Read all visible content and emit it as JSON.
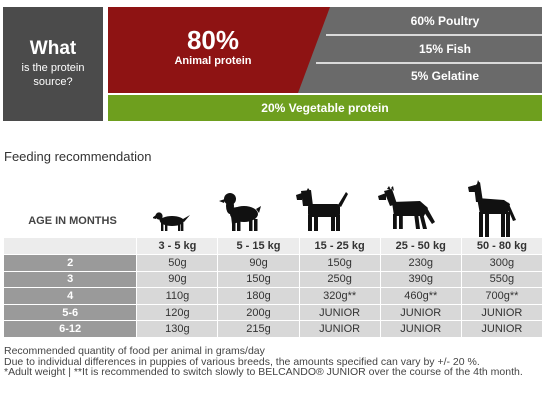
{
  "protein_source": {
    "what_title": "What",
    "what_subtitle": "is the protein source?",
    "animal_percent": "80%",
    "animal_label": "Animal protein",
    "animal_items": [
      "60% Poultry",
      "15% Fish",
      "5% Gelatine"
    ],
    "vegetable_label": "20% Vegetable protein",
    "colors": {
      "dark": "#4b4b4b",
      "red": "#8e1313",
      "grey": "#6a6a6a",
      "green": "#6e9f1e"
    }
  },
  "feeding": {
    "title": "Feeding recommendation",
    "age_header": "AGE IN MONTHS",
    "dog_icons": [
      "dachshund-icon",
      "spaniel-icon",
      "terrier-icon",
      "shepherd-icon",
      "great-dane-icon"
    ],
    "weight_headers": [
      "3 - 5 kg",
      "5 - 15 kg",
      "15 - 25 kg",
      "25 - 50 kg",
      "50 - 80 kg"
    ],
    "rows": [
      {
        "age": "2",
        "values": [
          "50g",
          "90g",
          "150g",
          "230g",
          "300g"
        ]
      },
      {
        "age": "3",
        "values": [
          "90g",
          "150g",
          "250g",
          "390g",
          "550g"
        ]
      },
      {
        "age": "4",
        "values": [
          "110g",
          "180g",
          "320g**",
          "460g**",
          "700g**"
        ]
      },
      {
        "age": "5-6",
        "values": [
          "120g",
          "200g",
          "JUNIOR",
          "JUNIOR",
          "JUNIOR"
        ]
      },
      {
        "age": "6-12",
        "values": [
          "130g",
          "215g",
          "JUNIOR",
          "JUNIOR",
          "JUNIOR"
        ]
      }
    ],
    "notes": [
      "Recommended quantity of food per animal in grams/day",
      "Due to individual differences in puppies of various breeds, the amounts specified can vary by +/- 20 %.",
      "*Adult weight | **It is recommended to switch slowly to BELCANDO® JUNIOR over the course of the 4th month."
    ]
  }
}
